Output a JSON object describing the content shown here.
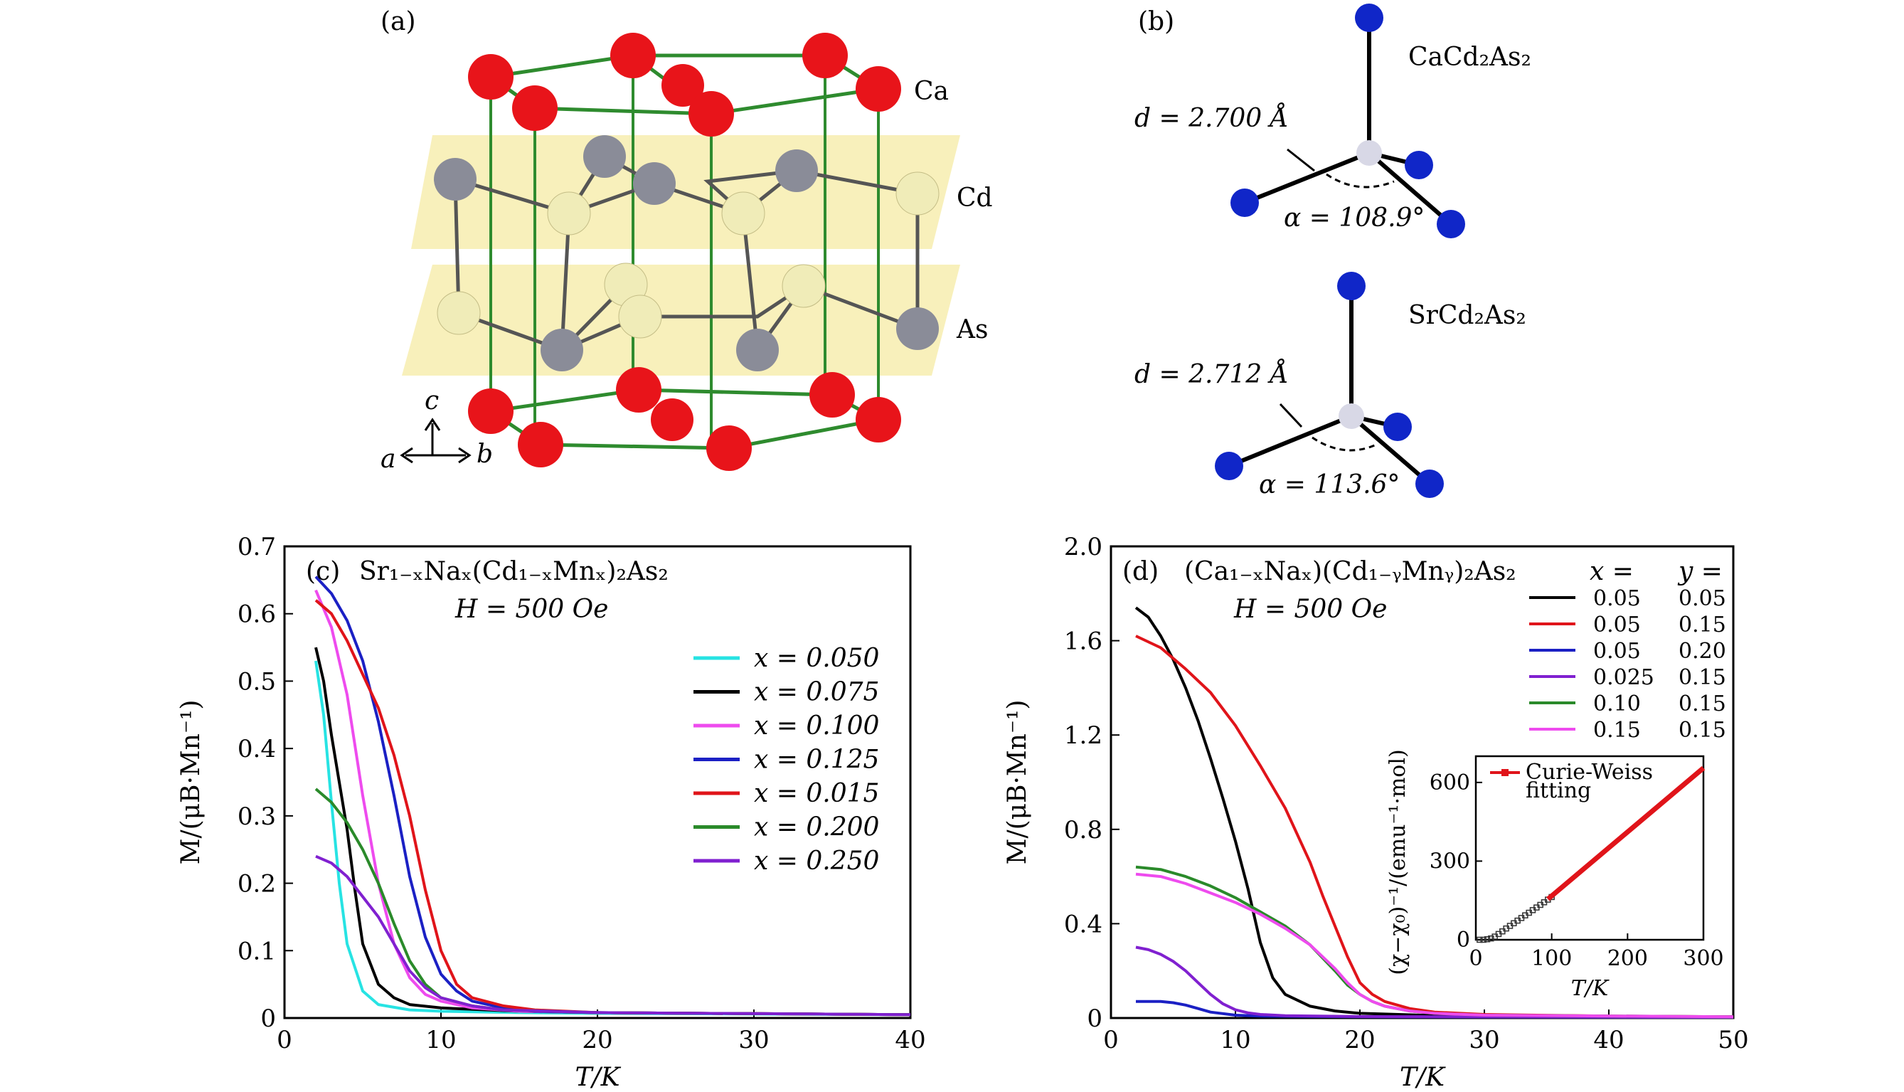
{
  "panels": {
    "a": {
      "label": "(a)",
      "atoms": [
        "Ca",
        "Cd",
        "As"
      ],
      "axes": {
        "c": "c",
        "a": "a",
        "b": "b"
      }
    },
    "b": {
      "label": "(b)",
      "top": {
        "compound": "CaCd₂As₂",
        "d": "d = 2.700 Å",
        "alpha": "α = 108.9°"
      },
      "bottom": {
        "compound": "SrCd₂As₂",
        "d": "d = 2.712 Å",
        "alpha": "α = 113.6°"
      }
    }
  },
  "colors": {
    "ca": "#e8141a",
    "cd": "#f0ecb8",
    "as": "#8a8c98",
    "bond_green": "#2e8b2e",
    "plane": "#f5eba4",
    "tetra_center": "#d8d8e6",
    "tetra_vertex": "#1026c8"
  },
  "chart_data": [
    {
      "type": "line",
      "panel_label": "(c)",
      "title": "Sr₁₋ₓNaₓ(Cd₁₋ₓMnₓ)₂As₂",
      "subtitle": "H = 500 Oe",
      "xlabel": "T/K",
      "ylabel": "M/(μB·Mn⁻¹)",
      "xlim": [
        0,
        40
      ],
      "ylim": [
        0,
        0.7
      ],
      "xticks": [
        0,
        10,
        20,
        30,
        40
      ],
      "yticks": [
        0,
        0.1,
        0.2,
        0.3,
        0.4,
        0.5,
        0.6,
        0.7
      ],
      "ytick_labels": [
        "0",
        "0.1",
        "0.2",
        "0.3",
        "0.4",
        "0.5",
        "0.6",
        "0.7"
      ],
      "legend_position": "right",
      "series": [
        {
          "name": "x = 0.050",
          "color": "#27e3e3",
          "x": [
            2,
            2.5,
            3,
            3.5,
            4,
            5,
            6,
            8,
            10,
            15,
            20,
            40
          ],
          "y": [
            0.53,
            0.45,
            0.32,
            0.2,
            0.11,
            0.04,
            0.02,
            0.012,
            0.01,
            0.008,
            0.007,
            0.005
          ]
        },
        {
          "name": "x = 0.075",
          "color": "#000000",
          "x": [
            2,
            2.5,
            3,
            3.5,
            4,
            4.5,
            5,
            6,
            7,
            8,
            10,
            15,
            20,
            40
          ],
          "y": [
            0.55,
            0.5,
            0.42,
            0.35,
            0.28,
            0.19,
            0.11,
            0.05,
            0.03,
            0.02,
            0.015,
            0.01,
            0.008,
            0.005
          ]
        },
        {
          "name": "x = 0.100",
          "color": "#ee4bee",
          "x": [
            2,
            3,
            4,
            5,
            6,
            7,
            8,
            9,
            10,
            12,
            15,
            20,
            40
          ],
          "y": [
            0.635,
            0.58,
            0.48,
            0.33,
            0.2,
            0.11,
            0.06,
            0.035,
            0.025,
            0.015,
            0.01,
            0.008,
            0.005
          ]
        },
        {
          "name": "x = 0.125",
          "color": "#1b20c4",
          "x": [
            2,
            3,
            4,
            5,
            6,
            7,
            8,
            9,
            10,
            11,
            12,
            14,
            16,
            20,
            40
          ],
          "y": [
            0.655,
            0.63,
            0.59,
            0.53,
            0.44,
            0.33,
            0.21,
            0.12,
            0.065,
            0.04,
            0.025,
            0.015,
            0.01,
            0.008,
            0.005
          ]
        },
        {
          "name": "x = 0.015",
          "color": "#e0141a",
          "x": [
            2,
            3,
            4,
            5,
            6,
            7,
            8,
            9,
            10,
            11,
            12,
            14,
            16,
            20,
            40
          ],
          "y": [
            0.62,
            0.6,
            0.56,
            0.51,
            0.46,
            0.39,
            0.3,
            0.19,
            0.1,
            0.05,
            0.03,
            0.018,
            0.012,
            0.008,
            0.005
          ]
        },
        {
          "name": "x = 0.200",
          "color": "#2a8a2a",
          "x": [
            2,
            3,
            4,
            5,
            6,
            7,
            8,
            9,
            10,
            12,
            14,
            20,
            40
          ],
          "y": [
            0.34,
            0.32,
            0.29,
            0.25,
            0.2,
            0.14,
            0.085,
            0.05,
            0.03,
            0.018,
            0.012,
            0.008,
            0.005
          ]
        },
        {
          "name": "x = 0.250",
          "color": "#8020d0",
          "x": [
            2,
            3,
            4,
            5,
            6,
            7,
            8,
            9,
            10,
            12,
            14,
            20,
            40
          ],
          "y": [
            0.24,
            0.23,
            0.21,
            0.18,
            0.15,
            0.11,
            0.07,
            0.045,
            0.03,
            0.018,
            0.012,
            0.008,
            0.005
          ]
        }
      ]
    },
    {
      "type": "line",
      "panel_label": "(d)",
      "title": "(Ca₁₋ₓNaₓ)(Cd₁₋ᵧMnᵧ)₂As₂",
      "subtitle": "H = 500 Oe",
      "xlabel": "T/K",
      "ylabel": "M/(μB·Mn⁻¹)",
      "xlim": [
        0,
        50
      ],
      "ylim": [
        0,
        2.0
      ],
      "xticks": [
        0,
        10,
        20,
        30,
        40,
        50
      ],
      "yticks": [
        0,
        0.4,
        0.8,
        1.2,
        1.6,
        2.0
      ],
      "ytick_labels": [
        "0",
        "0.4",
        "0.8",
        "1.2",
        "1.6",
        "2.0"
      ],
      "legend_header": {
        "x": "x =",
        "y": "y ="
      },
      "legend_position": "top-right",
      "series": [
        {
          "name": "0.05   0.05",
          "x_val": "0.05",
          "y_val": "0.05",
          "color": "#000000",
          "x": [
            2,
            3,
            4,
            5,
            6,
            7,
            8,
            9,
            10,
            11,
            12,
            13,
            14,
            16,
            18,
            20,
            25,
            30,
            50
          ],
          "y": [
            1.74,
            1.7,
            1.62,
            1.52,
            1.4,
            1.26,
            1.1,
            0.93,
            0.75,
            0.55,
            0.32,
            0.17,
            0.1,
            0.05,
            0.03,
            0.02,
            0.012,
            0.008,
            0.005
          ]
        },
        {
          "name": "0.05   0.15",
          "x_val": "0.05",
          "y_val": "0.15",
          "color": "#e0141a",
          "x": [
            2,
            4,
            6,
            8,
            10,
            12,
            14,
            16,
            17,
            18,
            19,
            20,
            21,
            22,
            24,
            26,
            30,
            40,
            50
          ],
          "y": [
            1.62,
            1.57,
            1.48,
            1.38,
            1.24,
            1.07,
            0.89,
            0.66,
            0.52,
            0.39,
            0.26,
            0.15,
            0.1,
            0.07,
            0.04,
            0.025,
            0.015,
            0.008,
            0.005
          ]
        },
        {
          "name": "0.05   0.20",
          "x_val": "0.05",
          "y_val": "0.20",
          "color": "#1b20c4",
          "x": [
            2,
            4,
            5,
            6,
            7,
            8,
            10,
            12,
            20,
            50
          ],
          "y": [
            0.07,
            0.07,
            0.065,
            0.055,
            0.04,
            0.025,
            0.012,
            0.008,
            0.005,
            0.003
          ]
        },
        {
          "name": "0.025   0.15",
          "x_val": "0.025",
          "y_val": "0.15",
          "color": "#8020d0",
          "x": [
            2,
            3,
            4,
            5,
            6,
            7,
            8,
            9,
            10,
            11,
            12,
            14,
            20,
            50
          ],
          "y": [
            0.3,
            0.29,
            0.27,
            0.24,
            0.2,
            0.15,
            0.1,
            0.06,
            0.035,
            0.022,
            0.015,
            0.01,
            0.006,
            0.003
          ]
        },
        {
          "name": "0.10   0.15",
          "x_val": "0.10",
          "y_val": "0.15",
          "color": "#2a8a2a",
          "x": [
            2,
            4,
            6,
            8,
            10,
            12,
            14,
            16,
            18,
            19,
            20,
            21,
            22,
            24,
            26,
            30,
            50
          ],
          "y": [
            0.64,
            0.63,
            0.6,
            0.56,
            0.51,
            0.45,
            0.39,
            0.31,
            0.2,
            0.14,
            0.1,
            0.07,
            0.05,
            0.03,
            0.02,
            0.012,
            0.005
          ]
        },
        {
          "name": "0.15   0.15",
          "x_val": "0.15",
          "y_val": "0.15",
          "color": "#ee4bee",
          "x": [
            2,
            4,
            6,
            8,
            10,
            12,
            14,
            16,
            18,
            19,
            20,
            21,
            22,
            24,
            26,
            30,
            50
          ],
          "y": [
            0.61,
            0.6,
            0.57,
            0.53,
            0.49,
            0.44,
            0.38,
            0.31,
            0.21,
            0.15,
            0.1,
            0.07,
            0.05,
            0.03,
            0.02,
            0.012,
            0.005
          ]
        }
      ],
      "inset": {
        "type": "scatter",
        "xlabel": "T/K",
        "ylabel": "(χ−χ₀)⁻¹/(emu⁻¹·mol)",
        "xlim": [
          0,
          300
        ],
        "ylim": [
          0,
          700
        ],
        "xticks": [
          0,
          100,
          200,
          300
        ],
        "yticks": [
          0,
          300,
          600
        ],
        "legend": "Curie-Weiss\nfitting",
        "legend_line1": "Curie-Weiss",
        "legend_line2": "fitting",
        "fit_color": "#e0141a",
        "data_x": [
          5,
          10,
          15,
          20,
          25,
          30,
          35,
          40,
          45,
          50,
          55,
          60,
          65,
          70,
          75,
          80,
          85,
          90,
          95,
          100
        ],
        "data_y": [
          0,
          0,
          2,
          5,
          12,
          22,
          32,
          43,
          53,
          63,
          73,
          83,
          93,
          103,
          113,
          123,
          133,
          143,
          153,
          163
        ],
        "fit_x": [
          95,
          300
        ],
        "fit_y": [
          155,
          655
        ]
      }
    }
  ]
}
